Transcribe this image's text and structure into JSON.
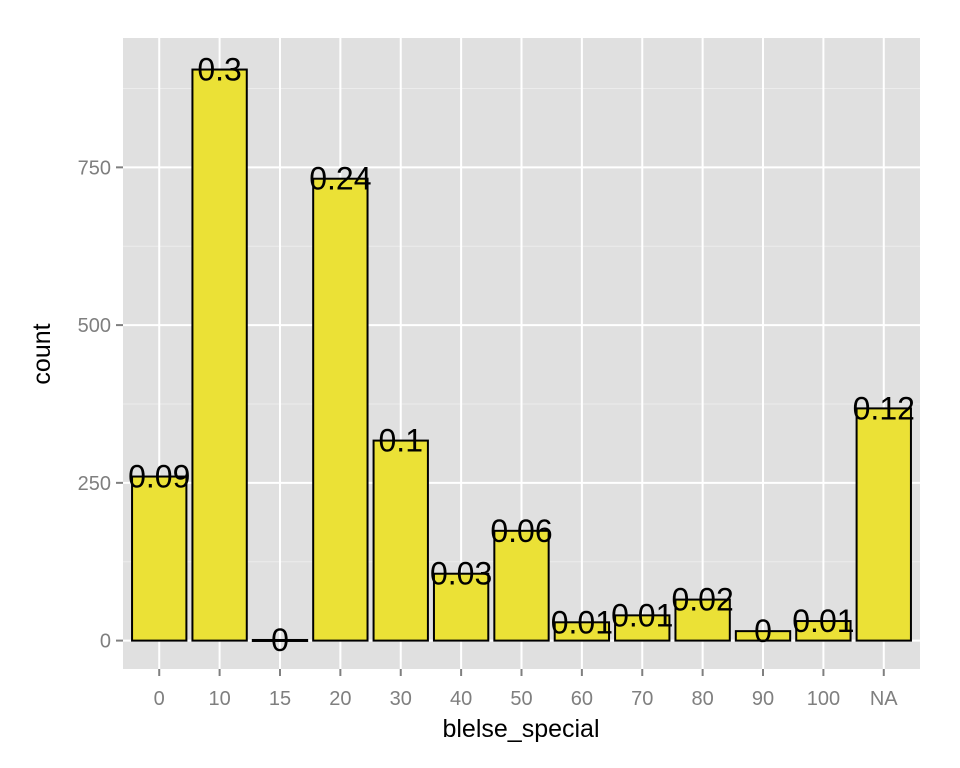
{
  "chart_data": {
    "type": "bar",
    "categories": [
      "0",
      "10",
      "15",
      "20",
      "30",
      "40",
      "50",
      "60",
      "70",
      "80",
      "90",
      "100",
      "NA"
    ],
    "values": [
      260,
      905,
      1,
      732,
      317,
      106,
      174,
      29,
      40,
      65,
      15,
      31,
      368
    ],
    "labels": [
      "0.09",
      "0.3",
      "0",
      "0.24",
      "0.1",
      "0.03",
      "0.06",
      "0.01",
      "0.01",
      "0.02",
      "0",
      "0.01",
      "0.12"
    ],
    "xlabel": "blelse_special",
    "ylabel": "count",
    "ylim": [
      -45,
      955
    ],
    "yticks": [
      0,
      250,
      500,
      750
    ],
    "ytick_labels": [
      "0",
      "250",
      "500",
      "750"
    ],
    "grid": true,
    "colors": {
      "bar_fill": "#ebe136",
      "bar_stroke": "#000000",
      "panel_background": "#e0e0e0",
      "grid_major": "#ffffff",
      "grid_minor": "#ececec",
      "tick_label": "#7f7f7f"
    }
  }
}
